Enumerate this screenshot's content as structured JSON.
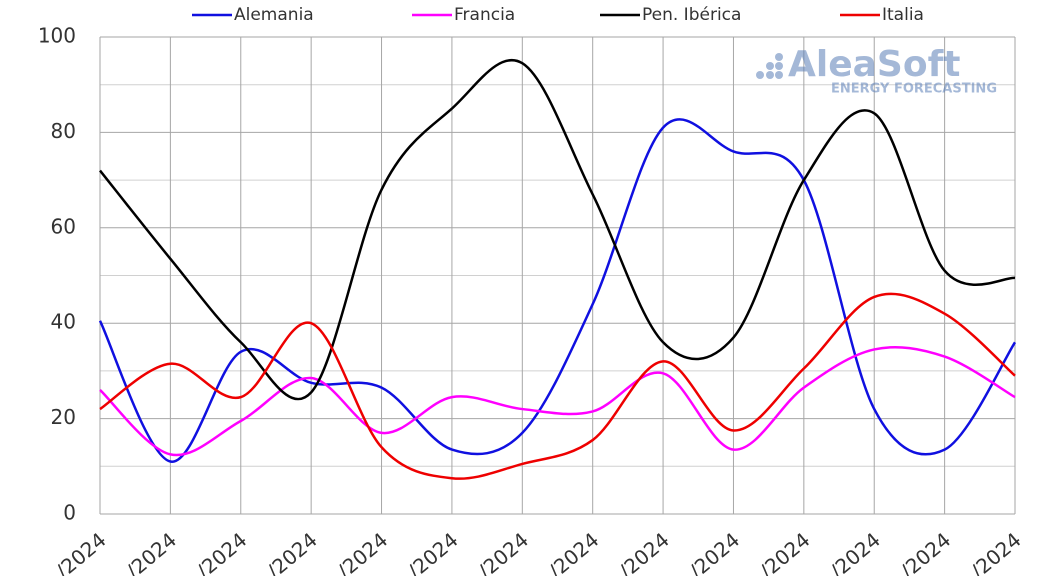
{
  "chart_data": {
    "type": "line",
    "categories": [
      "/2024",
      "/2024",
      "/2024",
      "/2024",
      "/2024",
      "/2024",
      "/2024",
      "/2024",
      "/2024",
      "/2024",
      "/2024",
      "/2024",
      "/2024",
      "/2024"
    ],
    "series": [
      {
        "name": "Alemania",
        "color": "#1010e0",
        "values": [
          40.5,
          11,
          34,
          27.5,
          26.5,
          13.5,
          17,
          44,
          81,
          76,
          70,
          22,
          13.5,
          36
        ]
      },
      {
        "name": "Francia",
        "color": "#ff00ff",
        "values": [
          26,
          12.5,
          19.5,
          28.5,
          17,
          24.5,
          22,
          21.5,
          29.5,
          13.5,
          26.5,
          34.5,
          33,
          24.5
        ]
      },
      {
        "name": "Pen. Ibérica",
        "color": "#000000",
        "values": [
          72,
          53.5,
          36,
          25.5,
          68,
          85,
          94.5,
          67,
          36,
          37,
          70,
          84,
          51,
          49.5
        ]
      },
      {
        "name": "Italia",
        "color": "#ee0000",
        "values": [
          22,
          31.5,
          24.5,
          40,
          14,
          7.5,
          10.5,
          15.5,
          32,
          17.5,
          30.5,
          45.5,
          42,
          29
        ]
      }
    ],
    "ylim": [
      0,
      100
    ],
    "yticks": [
      0,
      20,
      40,
      60,
      80,
      100
    ],
    "minor_yticks": [
      10,
      30,
      50,
      70,
      90
    ],
    "grid": true,
    "watermark": {
      "brand": "AleaSoft",
      "tagline": "ENERGY FORECASTING"
    }
  }
}
